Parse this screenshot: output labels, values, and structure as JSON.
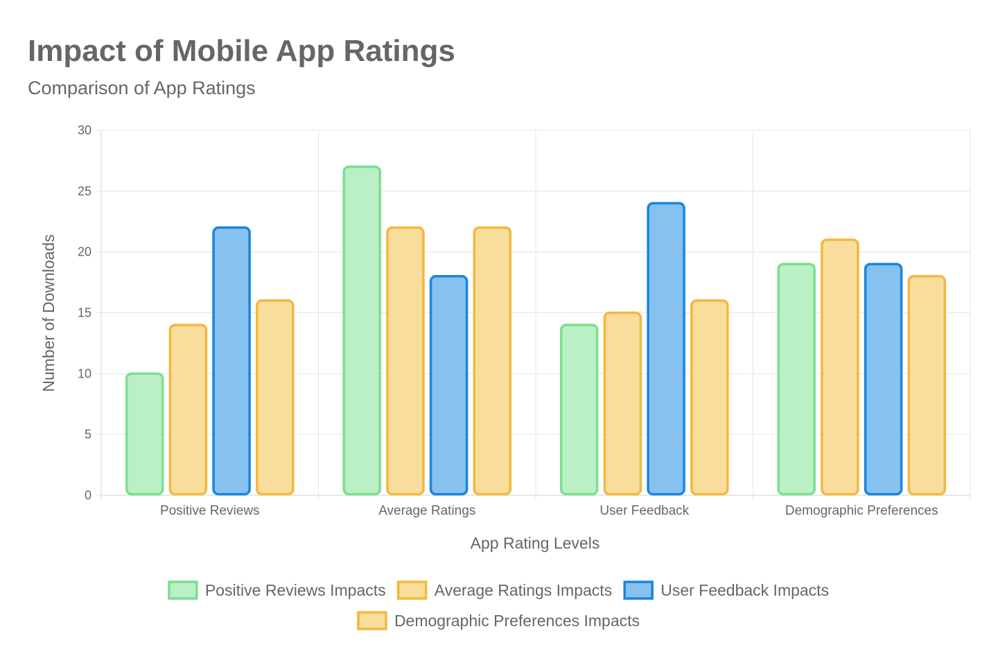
{
  "chart_data": {
    "type": "bar",
    "title": "Impact of Mobile App Ratings",
    "subtitle": "Comparison of App Ratings",
    "xlabel": "App Rating Levels",
    "ylabel": "Number of Downloads",
    "ylim": [
      0,
      30
    ],
    "y_ticks": [
      0,
      5,
      10,
      15,
      20,
      25,
      30
    ],
    "grid": true,
    "legend_position": "bottom",
    "categories": [
      "Positive Reviews",
      "Average Ratings",
      "User Feedback",
      "Demographic Preferences"
    ],
    "series": [
      {
        "name": "Positive Reviews Impacts",
        "values": [
          10,
          27,
          14,
          19
        ],
        "fill": "#bbefc6",
        "stroke": "#7bdf8f"
      },
      {
        "name": "Average Ratings Impacts",
        "values": [
          14,
          22,
          15,
          21
        ],
        "fill": "#f9dd9c",
        "stroke": "#f2b83f"
      },
      {
        "name": "User Feedback Impacts",
        "values": [
          22,
          18,
          24,
          19
        ],
        "fill": "#86c1f0",
        "stroke": "#1a85da"
      },
      {
        "name": "Demographic Preferences Impacts",
        "values": [
          16,
          22,
          16,
          18
        ],
        "fill": "#f9dd9c",
        "stroke": "#f2b83f"
      }
    ]
  }
}
